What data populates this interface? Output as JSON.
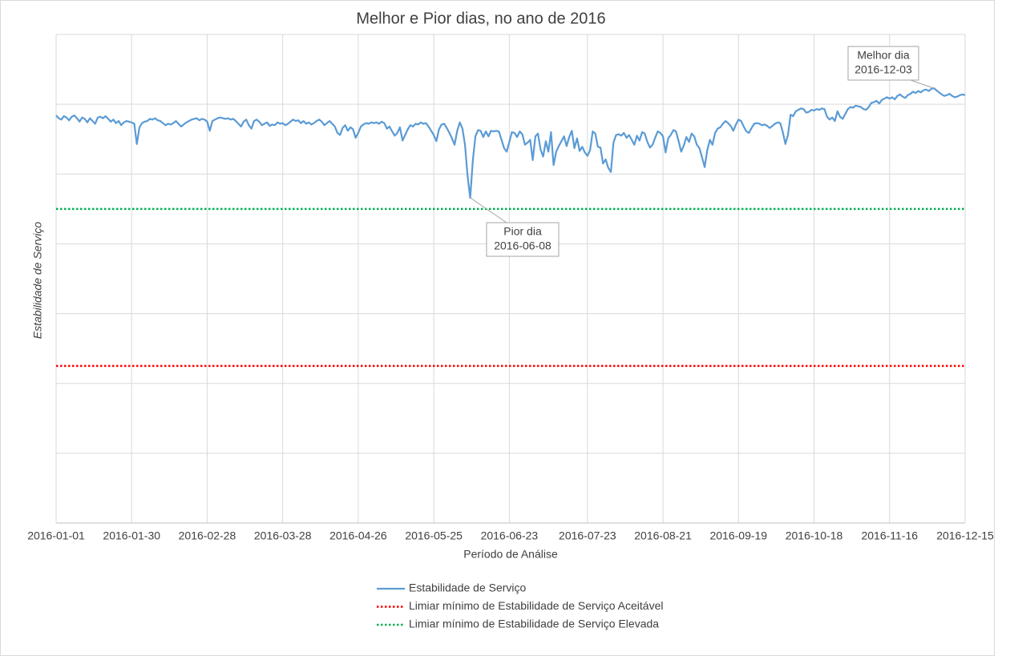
{
  "chart_data": {
    "type": "line",
    "title": "Melhor e Pior dias, no ano de 2016",
    "x_label": "Período de Análise",
    "y_label": "Estabilidade de Serviço",
    "categories": [
      "2016-01-01",
      null,
      null,
      null,
      null,
      null,
      null,
      null,
      null,
      null,
      null,
      null,
      null,
      null,
      null,
      null,
      null,
      null,
      null,
      null,
      null,
      null,
      null,
      null,
      null,
      null,
      null,
      null,
      null,
      "2016-01-30",
      null,
      null,
      null,
      null,
      null,
      null,
      null,
      null,
      null,
      null,
      null,
      null,
      null,
      null,
      null,
      null,
      null,
      null,
      null,
      null,
      null,
      null,
      null,
      null,
      null,
      null,
      null,
      null,
      "2016-02-28",
      null,
      null,
      null,
      null,
      null,
      null,
      null,
      null,
      null,
      null,
      null,
      null,
      null,
      null,
      null,
      null,
      null,
      null,
      null,
      null,
      null,
      null,
      null,
      null,
      null,
      null,
      null,
      null,
      "2016-03-28",
      null,
      null,
      null,
      null,
      null,
      null,
      null,
      null,
      null,
      null,
      null,
      null,
      null,
      null,
      null,
      null,
      null,
      null,
      null,
      null,
      null,
      null,
      null,
      null,
      null,
      null,
      null,
      null,
      "2016-04-26",
      null,
      null,
      null,
      null,
      null,
      null,
      null,
      null,
      null,
      null,
      null,
      null,
      null,
      null,
      null,
      null,
      null,
      null,
      null,
      null,
      null,
      null,
      null,
      null,
      null,
      null,
      null,
      null,
      "2016-05-25",
      null,
      null,
      null,
      null,
      null,
      null,
      null,
      null,
      null,
      null,
      null,
      null,
      null,
      null,
      null,
      null,
      null,
      null,
      null,
      null,
      null,
      null,
      null,
      null,
      null,
      null,
      null,
      null,
      "2016-06-23",
      null,
      null,
      null,
      null,
      null,
      null,
      null,
      null,
      null,
      null,
      null,
      null,
      null,
      null,
      null,
      null,
      null,
      null,
      null,
      null,
      null,
      null,
      null,
      null,
      null,
      null,
      null,
      null,
      null,
      "2016-07-23",
      null,
      null,
      null,
      null,
      null,
      null,
      null,
      null,
      null,
      null,
      null,
      null,
      null,
      null,
      null,
      null,
      null,
      null,
      null,
      null,
      null,
      null,
      null,
      null,
      null,
      null,
      null,
      null,
      "2016-08-21",
      null,
      null,
      null,
      null,
      null,
      null,
      null,
      null,
      null,
      null,
      null,
      null,
      null,
      null,
      null,
      null,
      null,
      null,
      null,
      null,
      null,
      null,
      null,
      null,
      null,
      null,
      null,
      null,
      "2016-09-19",
      null,
      null,
      null,
      null,
      null,
      null,
      null,
      null,
      null,
      null,
      null,
      null,
      null,
      null,
      null,
      null,
      null,
      null,
      null,
      null,
      null,
      null,
      null,
      null,
      null,
      null,
      null,
      null,
      "2016-10-18",
      null,
      null,
      null,
      null,
      null,
      null,
      null,
      null,
      null,
      null,
      null,
      null,
      null,
      null,
      null,
      null,
      null,
      null,
      null,
      null,
      null,
      null,
      null,
      null,
      null,
      null,
      null,
      null,
      "2016-11-16",
      null,
      null,
      null,
      null,
      null,
      null,
      null,
      null,
      null,
      null,
      null,
      null,
      null,
      null,
      null,
      null,
      null,
      null,
      null,
      null,
      null,
      null,
      null,
      null,
      null,
      null,
      null,
      null,
      "2016-12-15"
    ],
    "series": [
      {
        "name": "Estabilidade de Serviço",
        "color": "#5b9bd5",
        "values": [
          58.4,
          58.0,
          57.8,
          58.3,
          58.1,
          57.7,
          58.2,
          58.4,
          58.0,
          57.5,
          58.1,
          57.9,
          57.4,
          58.0,
          57.6,
          57.2,
          58.1,
          58.2,
          58.0,
          58.3,
          57.9,
          57.5,
          57.8,
          57.3,
          57.6,
          57.0,
          57.4,
          57.6,
          57.5,
          57.4,
          57.2,
          54.3,
          56.7,
          57.3,
          57.5,
          57.6,
          57.9,
          57.8,
          58.0,
          57.7,
          57.6,
          57.3,
          57.0,
          57.2,
          57.1,
          57.3,
          57.6,
          57.2,
          56.8,
          57.1,
          57.4,
          57.6,
          57.8,
          57.9,
          58.0,
          57.7,
          57.9,
          57.8,
          57.5,
          56.2,
          57.6,
          57.8,
          58.0,
          58.1,
          58.0,
          57.9,
          58.0,
          57.8,
          57.9,
          57.6,
          57.2,
          56.8,
          57.5,
          57.8,
          57.0,
          56.5,
          57.6,
          57.8,
          57.5,
          57.0,
          57.2,
          57.4,
          56.9,
          57.1,
          57.0,
          57.4,
          57.2,
          57.3,
          57.0,
          57.2,
          57.5,
          57.8,
          57.6,
          57.7,
          57.3,
          57.6,
          57.2,
          57.4,
          57.1,
          57.3,
          57.6,
          57.8,
          57.5,
          57.0,
          57.3,
          57.6,
          57.2,
          56.8,
          55.9,
          55.6,
          56.6,
          57.0,
          56.2,
          56.7,
          56.4,
          55.2,
          55.9,
          56.8,
          57.1,
          57.3,
          57.2,
          57.4,
          57.3,
          57.4,
          57.2,
          57.5,
          57.3,
          56.5,
          56.8,
          56.1,
          55.5,
          55.9,
          56.7,
          54.8,
          55.6,
          56.4,
          57.0,
          56.8,
          57.2,
          57.1,
          57.4,
          57.2,
          57.3,
          56.8,
          56.2,
          55.6,
          54.7,
          56.4,
          57.1,
          57.2,
          56.6,
          55.9,
          55.1,
          54.2,
          56.2,
          57.4,
          56.5,
          54.2,
          49.6,
          46.6,
          52.0,
          55.4,
          56.3,
          56.2,
          55.3,
          56.1,
          55.4,
          56.2,
          56.1,
          56.2,
          56.1,
          54.9,
          53.7,
          53.2,
          54.6,
          56.0,
          55.9,
          55.3,
          56.1,
          55.7,
          54.2,
          54.5,
          54.9,
          52.0,
          55.4,
          55.8,
          53.5,
          52.5,
          54.7,
          53.2,
          56.0,
          51.3,
          53.2,
          54.0,
          54.7,
          55.4,
          54.0,
          55.3,
          56.2,
          53.7,
          55.1,
          53.3,
          53.9,
          53.1,
          52.6,
          53.4,
          56.1,
          55.8,
          53.9,
          53.8,
          51.5,
          52.1,
          50.9,
          50.3,
          54.5,
          55.6,
          55.7,
          55.5,
          55.9,
          55.2,
          55.6,
          54.9,
          54.2,
          55.5,
          54.8,
          56.0,
          55.8,
          54.6,
          53.8,
          54.2,
          55.2,
          56.1,
          55.9,
          55.4,
          53.1,
          55.1,
          55.6,
          56.3,
          56.1,
          54.7,
          53.2,
          54.1,
          55.3,
          54.6,
          55.8,
          55.4,
          54.2,
          53.7,
          52.4,
          51.0,
          53.4,
          54.9,
          54.2,
          55.9,
          56.5,
          56.7,
          57.2,
          57.6,
          57.3,
          56.9,
          56.2,
          57.1,
          57.8,
          57.6,
          56.8,
          56.1,
          55.9,
          56.6,
          57.2,
          57.3,
          57.2,
          57.0,
          57.1,
          56.9,
          56.6,
          56.9,
          57.2,
          57.4,
          57.3,
          56.0,
          54.3,
          55.6,
          58.5,
          58.3,
          59.0,
          59.2,
          59.4,
          59.3,
          58.8,
          58.9,
          59.2,
          59.1,
          59.3,
          59.2,
          59.4,
          59.3,
          58.2,
          57.8,
          58.1,
          57.6,
          59.0,
          58.2,
          57.9,
          58.6,
          59.3,
          59.6,
          59.5,
          59.8,
          59.7,
          59.6,
          59.3,
          59.2,
          59.6,
          60.2,
          60.3,
          60.5,
          60.1,
          60.6,
          60.8,
          61.0,
          60.8,
          61.0,
          60.7,
          61.2,
          61.4,
          61.1,
          60.9,
          61.3,
          61.5,
          61.8,
          61.6,
          61.9,
          61.7,
          62.0,
          62.1,
          61.9,
          62.2,
          62.3,
          62.0,
          61.7,
          61.4,
          61.2,
          61.3,
          61.5,
          61.2,
          61.0,
          61.1,
          61.3,
          61.4,
          61.3
        ]
      }
    ],
    "hlines": [
      {
        "name": "Limiar mínimo de Estabilidade de Serviço Aceitável",
        "color": "#ff0000",
        "value": 22.5
      },
      {
        "name": "Limiar mínimo de Estabilidade de Serviço Elevada",
        "color": "#00b050",
        "value": 45
      }
    ],
    "annotations": [
      {
        "lines": [
          "Pior dia",
          "2016-06-08"
        ]
      },
      {
        "lines": [
          "Melhor dia",
          "2016-12-03"
        ]
      }
    ],
    "ylim": [
      0,
      70
    ],
    "ygrid": [
      10,
      20,
      30,
      40,
      50,
      60,
      70
    ],
    "grid": true,
    "legend": "bottom"
  }
}
